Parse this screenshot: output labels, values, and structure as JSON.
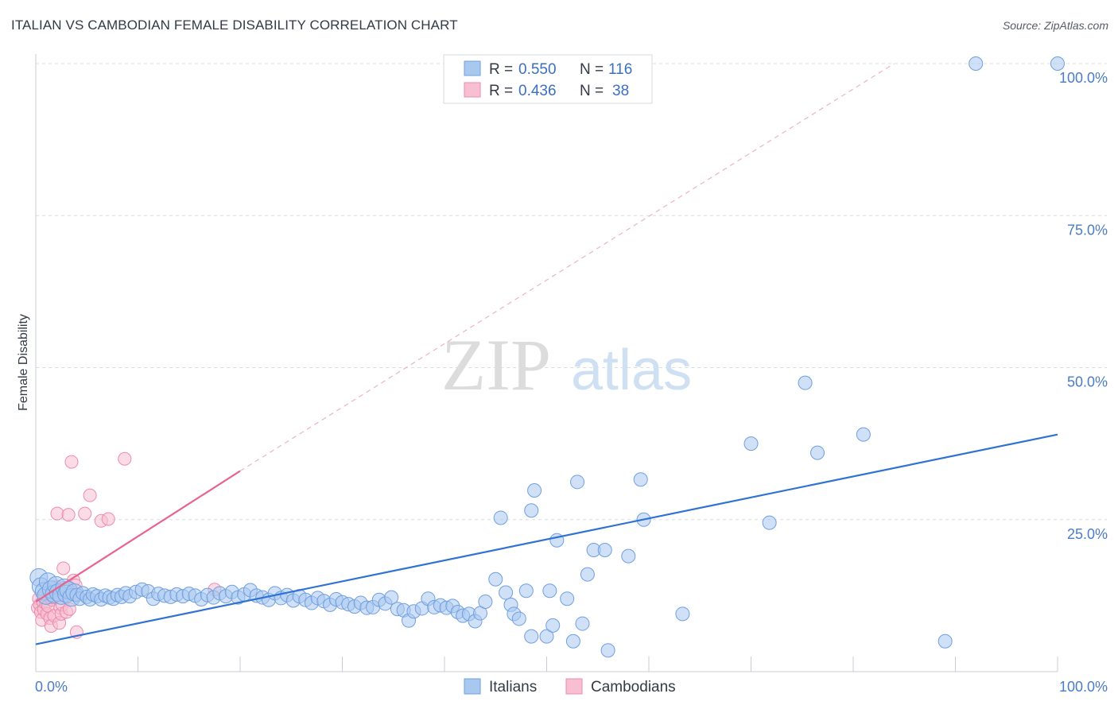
{
  "title": "ITALIAN VS CAMBODIAN FEMALE DISABILITY CORRELATION CHART",
  "source": "Source: ZipAtlas.com",
  "watermark": {
    "zip": "ZIP",
    "atlas": "atlas"
  },
  "colors": {
    "italians_fill": "#a9c8f0",
    "italians_stroke": "#6f9fe0",
    "italians_line": "#2f72d4",
    "cambodians_fill": "#f8bfd1",
    "cambodians_stroke": "#ee8aab",
    "cambodians_line": "#e8648f",
    "grid": "#d9dde3",
    "tick_label": "#4a7cc7"
  },
  "legend": {
    "row1": {
      "r_label": "R =",
      "r_value": "0.550",
      "n_label": "N =",
      "n_value": "116"
    },
    "row2": {
      "r_label": "R =",
      "r_value": "0.436",
      "n_label": "N =",
      "n_value": "38"
    }
  },
  "chart_data": {
    "type": "scatter",
    "title": "ITALIAN VS CAMBODIAN FEMALE DISABILITY CORRELATION CHART",
    "xlabel": "",
    "ylabel": "Female Disability",
    "xlim": [
      0,
      100
    ],
    "ylim": [
      0,
      100
    ],
    "x_tick_labels": [
      "0.0%",
      "100.0%"
    ],
    "y_tick_labels": [
      "25.0%",
      "50.0%",
      "75.0%",
      "100.0%"
    ],
    "y_tick_values": [
      25,
      50,
      75,
      100
    ],
    "grid": true,
    "legend_position": "top-center",
    "series": [
      {
        "name": "Italians",
        "r": 0.55,
        "n": 116,
        "trend": {
          "x0": 0,
          "y0": 4.5,
          "x1": 100,
          "y1": 39.0
        },
        "points": [
          [
            0.3,
            15.5
          ],
          [
            0.5,
            14.0
          ],
          [
            0.8,
            13.2
          ],
          [
            1.0,
            12.5
          ],
          [
            1.2,
            14.8
          ],
          [
            1.5,
            13.5
          ],
          [
            1.8,
            12.8
          ],
          [
            2.0,
            14.2
          ],
          [
            2.2,
            13.0
          ],
          [
            2.5,
            12.5
          ],
          [
            2.8,
            13.8
          ],
          [
            3.0,
            12.8
          ],
          [
            3.2,
            13.4
          ],
          [
            3.5,
            12.2
          ],
          [
            3.8,
            13.0
          ],
          [
            4.0,
            12.6
          ],
          [
            4.3,
            12.0
          ],
          [
            4.6,
            12.9
          ],
          [
            5.0,
            12.3
          ],
          [
            5.3,
            11.9
          ],
          [
            5.6,
            12.7
          ],
          [
            6.0,
            12.4
          ],
          [
            6.4,
            11.9
          ],
          [
            6.8,
            12.5
          ],
          [
            7.2,
            12.2
          ],
          [
            7.6,
            12.0
          ],
          [
            8.0,
            12.6
          ],
          [
            8.4,
            12.3
          ],
          [
            8.8,
            12.9
          ],
          [
            9.2,
            12.4
          ],
          [
            9.8,
            13.1
          ],
          [
            10.4,
            13.5
          ],
          [
            11.0,
            13.2
          ],
          [
            11.5,
            12.0
          ],
          [
            12.0,
            12.8
          ],
          [
            12.6,
            12.5
          ],
          [
            13.2,
            12.3
          ],
          [
            13.8,
            12.7
          ],
          [
            14.4,
            12.4
          ],
          [
            15.0,
            12.8
          ],
          [
            15.6,
            12.5
          ],
          [
            16.2,
            11.9
          ],
          [
            16.8,
            12.6
          ],
          [
            17.4,
            12.2
          ],
          [
            18.0,
            12.9
          ],
          [
            18.6,
            12.4
          ],
          [
            19.2,
            13.1
          ],
          [
            19.8,
            12.2
          ],
          [
            20.4,
            12.7
          ],
          [
            21.0,
            13.4
          ],
          [
            21.6,
            12.5
          ],
          [
            22.2,
            12.2
          ],
          [
            22.8,
            11.8
          ],
          [
            23.4,
            12.9
          ],
          [
            24.0,
            12.1
          ],
          [
            24.6,
            12.6
          ],
          [
            25.2,
            11.7
          ],
          [
            25.8,
            12.4
          ],
          [
            26.4,
            11.8
          ],
          [
            27.0,
            11.3
          ],
          [
            27.6,
            12.1
          ],
          [
            28.2,
            11.6
          ],
          [
            28.8,
            11.0
          ],
          [
            29.4,
            11.9
          ],
          [
            30.0,
            11.4
          ],
          [
            30.6,
            11.1
          ],
          [
            31.2,
            10.7
          ],
          [
            31.8,
            11.3
          ],
          [
            32.4,
            10.5
          ],
          [
            33.0,
            10.6
          ],
          [
            33.6,
            11.8
          ],
          [
            34.2,
            11.2
          ],
          [
            34.8,
            12.2
          ],
          [
            35.4,
            10.3
          ],
          [
            36.0,
            10.1
          ],
          [
            36.5,
            8.4
          ],
          [
            37.0,
            9.9
          ],
          [
            37.8,
            10.4
          ],
          [
            38.4,
            12.0
          ],
          [
            39.0,
            10.6
          ],
          [
            39.6,
            10.9
          ],
          [
            40.2,
            10.5
          ],
          [
            40.8,
            10.8
          ],
          [
            41.3,
            9.8
          ],
          [
            41.8,
            9.2
          ],
          [
            42.4,
            9.5
          ],
          [
            43.0,
            8.3
          ],
          [
            43.5,
            9.6
          ],
          [
            44.0,
            11.5
          ],
          [
            45.0,
            15.2
          ],
          [
            45.5,
            25.3
          ],
          [
            46.0,
            13.0
          ],
          [
            46.5,
            11.0
          ],
          [
            46.8,
            9.5
          ],
          [
            47.3,
            8.7
          ],
          [
            48.0,
            13.3
          ],
          [
            48.5,
            5.8
          ],
          [
            48.8,
            29.8
          ],
          [
            48.5,
            26.5
          ],
          [
            50.0,
            5.8
          ],
          [
            50.3,
            13.3
          ],
          [
            50.6,
            7.6
          ],
          [
            51.0,
            21.6
          ],
          [
            52.0,
            12.0
          ],
          [
            52.6,
            5.0
          ],
          [
            53.0,
            31.2
          ],
          [
            53.5,
            7.9
          ],
          [
            54.0,
            16.0
          ],
          [
            54.6,
            20.0
          ],
          [
            55.7,
            20.0
          ],
          [
            56.0,
            3.5
          ],
          [
            58.0,
            19.0
          ],
          [
            59.2,
            31.6
          ],
          [
            59.5,
            25.0
          ],
          [
            63.3,
            9.5
          ],
          [
            71.8,
            24.5
          ],
          [
            70.0,
            37.5
          ],
          [
            75.3,
            47.5
          ],
          [
            76.5,
            36.0
          ],
          [
            81.0,
            39.0
          ],
          [
            89.0,
            5.0
          ],
          [
            92.0,
            100.0
          ],
          [
            100.0,
            100.0
          ]
        ]
      },
      {
        "name": "Cambodians",
        "r": 0.436,
        "n": 38,
        "trend": {
          "x0": 0,
          "y0": 11.5,
          "x1": 20,
          "y1": 33.0
        },
        "trend_extended": {
          "x0": 20,
          "y0": 33.0,
          "x1": 84,
          "y1": 100.0
        },
        "points": [
          [
            0.2,
            10.5
          ],
          [
            0.3,
            12.0
          ],
          [
            0.4,
            11.0
          ],
          [
            0.5,
            9.8
          ],
          [
            0.6,
            8.5
          ],
          [
            0.7,
            11.5
          ],
          [
            0.8,
            10.2
          ],
          [
            0.9,
            12.5
          ],
          [
            1.0,
            11.2
          ],
          [
            1.1,
            9.5
          ],
          [
            1.2,
            10.8
          ],
          [
            1.3,
            13.0
          ],
          [
            1.4,
            8.8
          ],
          [
            1.5,
            7.5
          ],
          [
            1.6,
            11.8
          ],
          [
            1.7,
            12.2
          ],
          [
            1.8,
            9.2
          ],
          [
            2.0,
            14.0
          ],
          [
            2.1,
            26.0
          ],
          [
            2.3,
            8.0
          ],
          [
            2.4,
            10.5
          ],
          [
            2.5,
            9.5
          ],
          [
            2.6,
            11.0
          ],
          [
            2.7,
            17.0
          ],
          [
            2.8,
            13.8
          ],
          [
            3.0,
            9.8
          ],
          [
            3.2,
            25.8
          ],
          [
            3.3,
            10.3
          ],
          [
            3.5,
            34.5
          ],
          [
            3.7,
            15.0
          ],
          [
            3.9,
            14.2
          ],
          [
            4.0,
            6.5
          ],
          [
            4.8,
            26.0
          ],
          [
            5.3,
            29.0
          ],
          [
            6.4,
            24.8
          ],
          [
            7.1,
            25.1
          ],
          [
            8.7,
            35.0
          ],
          [
            17.5,
            13.5
          ]
        ]
      }
    ]
  },
  "bottom_legend": {
    "italians": "Italians",
    "cambodians": "Cambodians"
  }
}
